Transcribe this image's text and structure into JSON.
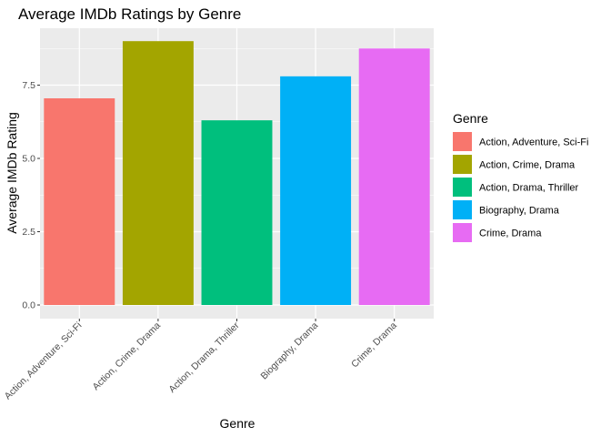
{
  "chart_data": {
    "type": "bar",
    "title": "Average IMDb Ratings by Genre",
    "xlabel": "Genre",
    "ylabel": "Average IMDb Rating",
    "categories": [
      "Action, Adventure, Sci-Fi",
      "Action, Crime, Drama",
      "Action, Drama, Thriller",
      "Biography, Drama",
      "Crime, Drama"
    ],
    "values": [
      7.05,
      9.0,
      6.3,
      7.8,
      8.75
    ],
    "colors": [
      "#F8766D",
      "#A3A500",
      "#00BF7D",
      "#00B0F6",
      "#E76BF3"
    ],
    "yticks": [
      0.0,
      2.5,
      5.0,
      7.5
    ],
    "ytick_labels": [
      "0.0",
      "2.5",
      "5.0",
      "7.5"
    ],
    "ylim": [
      0,
      9.45
    ],
    "grid": true,
    "legend": {
      "title": "Genre",
      "position": "right"
    }
  }
}
